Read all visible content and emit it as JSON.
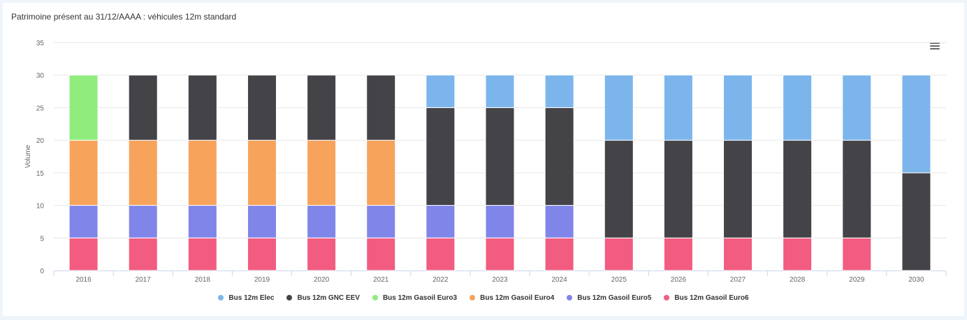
{
  "chart_data": {
    "type": "bar",
    "stacked": true,
    "title": "Patrimoine présent au 31/12/AAAA : véhicules 12m standard",
    "xlabel": "",
    "ylabel": "Volume",
    "ylim": [
      0,
      35
    ],
    "yticks": [
      0,
      5,
      10,
      15,
      20,
      25,
      30,
      35
    ],
    "categories": [
      "2016",
      "2017",
      "2018",
      "2019",
      "2020",
      "2021",
      "2022",
      "2023",
      "2024",
      "2025",
      "2026",
      "2027",
      "2028",
      "2029",
      "2030"
    ],
    "series": [
      {
        "name": "Bus 12m Elec",
        "color": "#7cb5ec",
        "values": [
          0,
          0,
          0,
          0,
          0,
          0,
          5,
          5,
          5,
          10,
          10,
          10,
          10,
          10,
          15
        ]
      },
      {
        "name": "Bus 12m GNC EEV",
        "color": "#434348",
        "values": [
          0,
          10,
          10,
          10,
          10,
          10,
          15,
          15,
          15,
          15,
          15,
          15,
          15,
          15,
          15
        ]
      },
      {
        "name": "Bus 12m Gasoil Euro3",
        "color": "#90ed7d",
        "values": [
          10,
          0,
          0,
          0,
          0,
          0,
          0,
          0,
          0,
          0,
          0,
          0,
          0,
          0,
          0
        ]
      },
      {
        "name": "Bus 12m Gasoil Euro4",
        "color": "#f7a35c",
        "values": [
          10,
          10,
          10,
          10,
          10,
          10,
          0,
          0,
          0,
          0,
          0,
          0,
          0,
          0,
          0
        ]
      },
      {
        "name": "Bus 12m Gasoil Euro5",
        "color": "#8085e9",
        "values": [
          5,
          5,
          5,
          5,
          5,
          5,
          5,
          5,
          5,
          0,
          0,
          0,
          0,
          0,
          0
        ]
      },
      {
        "name": "Bus 12m Gasoil Euro6",
        "color": "#f15c80",
        "values": [
          5,
          5,
          5,
          5,
          5,
          5,
          5,
          5,
          5,
          5,
          5,
          5,
          5,
          5,
          0
        ]
      }
    ],
    "grid": true,
    "legend_position": "bottom-center"
  },
  "menu_icon": "hamburger-menu-icon"
}
